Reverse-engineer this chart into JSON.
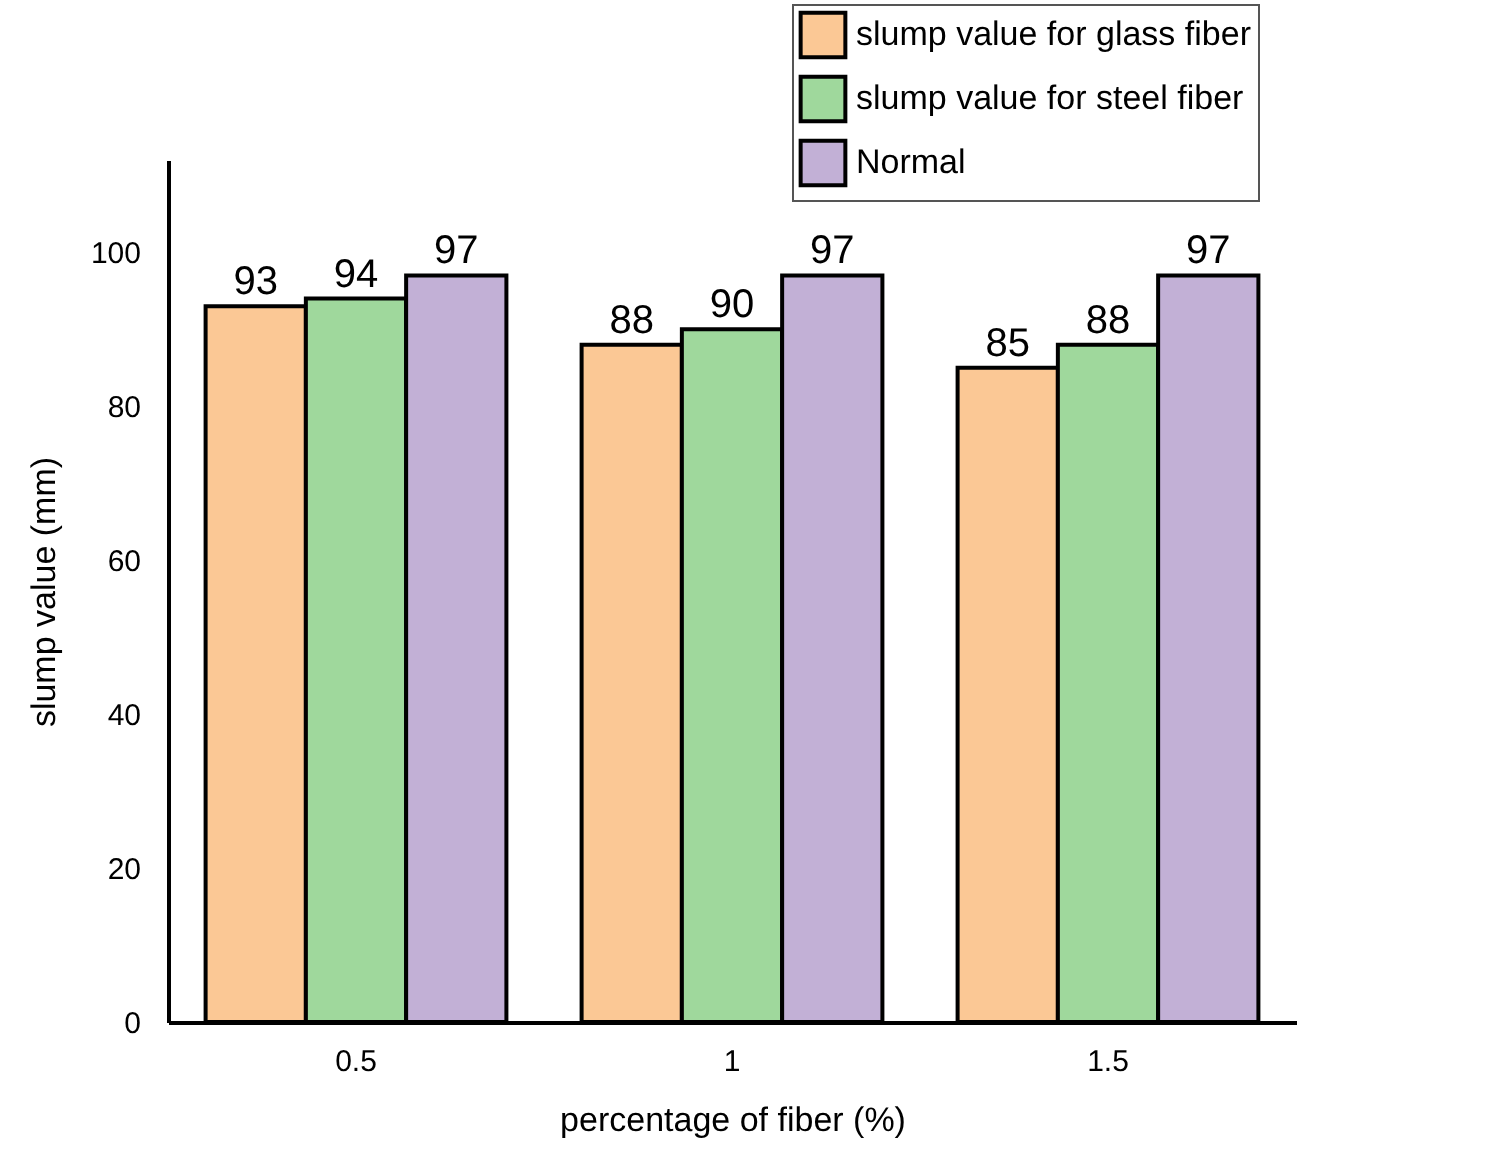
{
  "chart_data": {
    "type": "bar",
    "xlabel": "percentage of fiber (%)",
    "ylabel": "slump value (mm)",
    "categories": [
      "0.5",
      "1",
      "1.5"
    ],
    "series": [
      {
        "name": "slump value for glass fiber",
        "color": "#fbc895",
        "values": [
          93,
          88,
          85
        ]
      },
      {
        "name": "slump value for steel fiber",
        "color": "#9fd89c",
        "values": [
          94,
          90,
          88
        ]
      },
      {
        "name": "Normal",
        "color": "#c2b0d6",
        "values": [
          97,
          97,
          97
        ]
      }
    ],
    "ylim": [
      0,
      112
    ],
    "yticks": [
      0,
      20,
      40,
      60,
      80,
      100
    ],
    "grid": false,
    "legend": "top right",
    "data_labels": true
  }
}
